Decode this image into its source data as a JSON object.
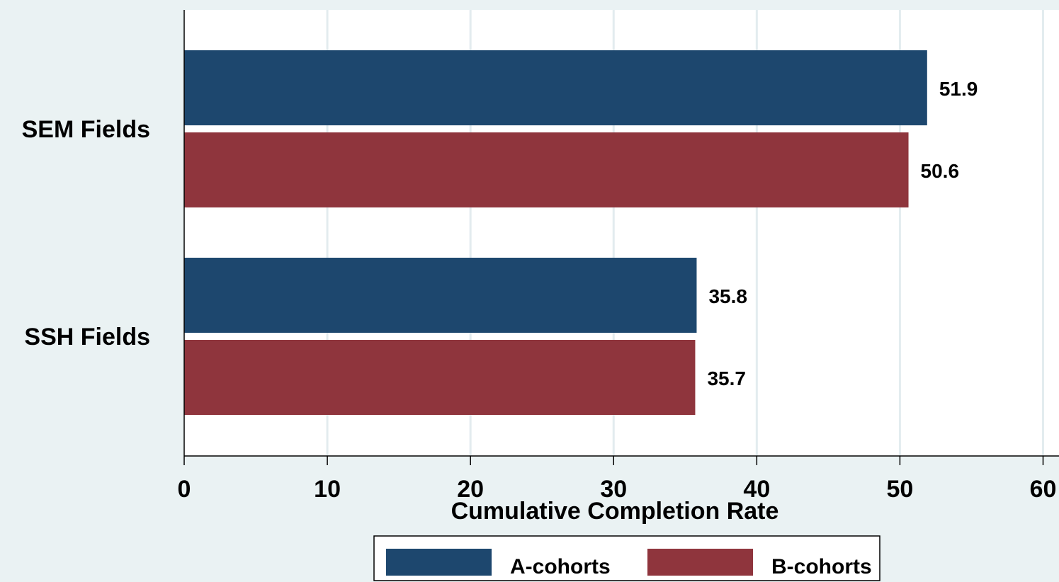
{
  "chart_data": {
    "type": "bar",
    "orientation": "horizontal",
    "categories": [
      "SEM Fields",
      "SSH Fields"
    ],
    "series": [
      {
        "name": "A-cohorts",
        "values": [
          51.9,
          35.8
        ],
        "color": "#1d476e"
      },
      {
        "name": "B-cohorts",
        "values": [
          50.6,
          35.7
        ],
        "color": "#8f353d"
      }
    ],
    "data_labels": [
      [
        "51.9",
        "35.8"
      ],
      [
        "50.6",
        "35.7"
      ]
    ],
    "xlabel": "Cumulative Completion Rate",
    "ylabel": "",
    "title": "",
    "xlim": [
      0,
      60
    ],
    "xticks": [
      0,
      10,
      20,
      30,
      40,
      50,
      60
    ],
    "grid": "vertical",
    "legend_position": "bottom"
  },
  "colors": {
    "background": "#eaf2f3",
    "plot_background": "#ffffff",
    "gridline": "#e3ecef"
  }
}
